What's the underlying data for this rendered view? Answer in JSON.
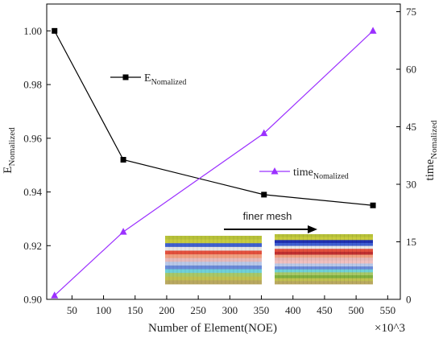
{
  "chart_data": {
    "type": "line",
    "x": [
      22.4,
      131.3,
      354.1,
      526.7
    ],
    "xlim": [
      10,
      570
    ],
    "xticks": [
      50,
      100,
      150,
      200,
      250,
      300,
      350,
      400,
      450,
      500,
      550
    ],
    "xlabel": "Number of Element(NOE)",
    "x_multiplier_label": "×10^3",
    "left_axis": {
      "label_main": "E",
      "label_sub": "Nomalized",
      "ylim": [
        0.9,
        1.01
      ],
      "ticks": [
        "0.90",
        "0.92",
        "0.94",
        "0.96",
        "0.98",
        "1.00"
      ],
      "tick_values": [
        0.9,
        0.92,
        0.94,
        0.96,
        0.98,
        1.0
      ]
    },
    "right_axis": {
      "label_main": "time",
      "label_sub": "Nomalized",
      "ylim": [
        0,
        77
      ],
      "ticks": [
        "0",
        "15",
        "30",
        "45",
        "60",
        "75"
      ],
      "tick_values": [
        0,
        15,
        30,
        45,
        60,
        75
      ]
    },
    "series": [
      {
        "name_main": "E",
        "name_sub": "Nomalized",
        "axis": "left",
        "marker": "square",
        "color": "#000000",
        "values": [
          1.0,
          0.952,
          0.939,
          0.935
        ]
      },
      {
        "name_main": "time",
        "name_sub": "Nomalized",
        "axis": "right",
        "marker": "triangle",
        "color": "#9b30ff",
        "values": [
          1,
          17.6,
          43.3,
          70
        ]
      }
    ],
    "annotation": {
      "text": "finer mesh",
      "arrow": "right"
    },
    "inset": {
      "coarse_layers": [
        "#b7c13a",
        "#c8cc3e",
        "#3f5fd0",
        "#e6e6e6",
        "#e3503d",
        "#f0a080",
        "#e6b8b8",
        "#b8c8e8",
        "#6a8ad8",
        "#6fd0d8",
        "#a8c868",
        "#c0c050",
        "#b9a860"
      ],
      "fine_layers": [
        "#b7c13a",
        "#c8cc3e",
        "#1f2fb0",
        "#3f5fd0",
        "#e6e6e6",
        "#e3503d",
        "#c03030",
        "#f0a080",
        "#e6b8b8",
        "#f0c0c0",
        "#b8c8e8",
        "#6a8ad8",
        "#6fd0d8",
        "#a8c868",
        "#80b040",
        "#c0c050",
        "#b9a860"
      ]
    }
  }
}
